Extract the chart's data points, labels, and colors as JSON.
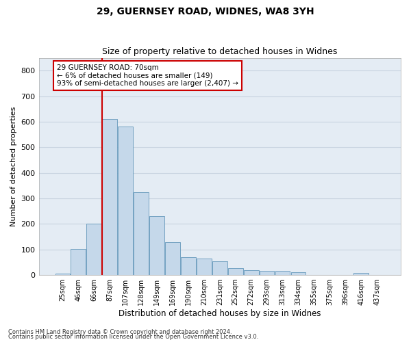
{
  "title1": "29, GUERNSEY ROAD, WIDNES, WA8 3YH",
  "title2": "Size of property relative to detached houses in Widnes",
  "xlabel": "Distribution of detached houses by size in Widnes",
  "ylabel": "Number of detached properties",
  "footer1": "Contains HM Land Registry data © Crown copyright and database right 2024.",
  "footer2": "Contains public sector information licensed under the Open Government Licence v3.0.",
  "bar_labels": [
    "25sqm",
    "46sqm",
    "66sqm",
    "87sqm",
    "107sqm",
    "128sqm",
    "149sqm",
    "169sqm",
    "190sqm",
    "210sqm",
    "231sqm",
    "252sqm",
    "272sqm",
    "293sqm",
    "313sqm",
    "334sqm",
    "355sqm",
    "375sqm",
    "396sqm",
    "416sqm",
    "437sqm"
  ],
  "bar_values": [
    5,
    103,
    200,
    610,
    580,
    325,
    230,
    130,
    70,
    65,
    55,
    28,
    20,
    17,
    17,
    10,
    0,
    0,
    0,
    8,
    0
  ],
  "bar_color": "#c5d8ea",
  "bar_edge_color": "#6699bb",
  "grid_color": "#c8d4e0",
  "background_color": "#e4ecf4",
  "subject_line_color": "#cc0000",
  "annotation_text1": "29 GUERNSEY ROAD: 70sqm",
  "annotation_text2": "← 6% of detached houses are smaller (149)",
  "annotation_text3": "93% of semi-detached houses are larger (2,407) →",
  "annotation_box_facecolor": "#ffffff",
  "annotation_box_edgecolor": "#cc0000",
  "ylim": [
    0,
    850
  ],
  "yticks": [
    0,
    100,
    200,
    300,
    400,
    500,
    600,
    700,
    800
  ]
}
